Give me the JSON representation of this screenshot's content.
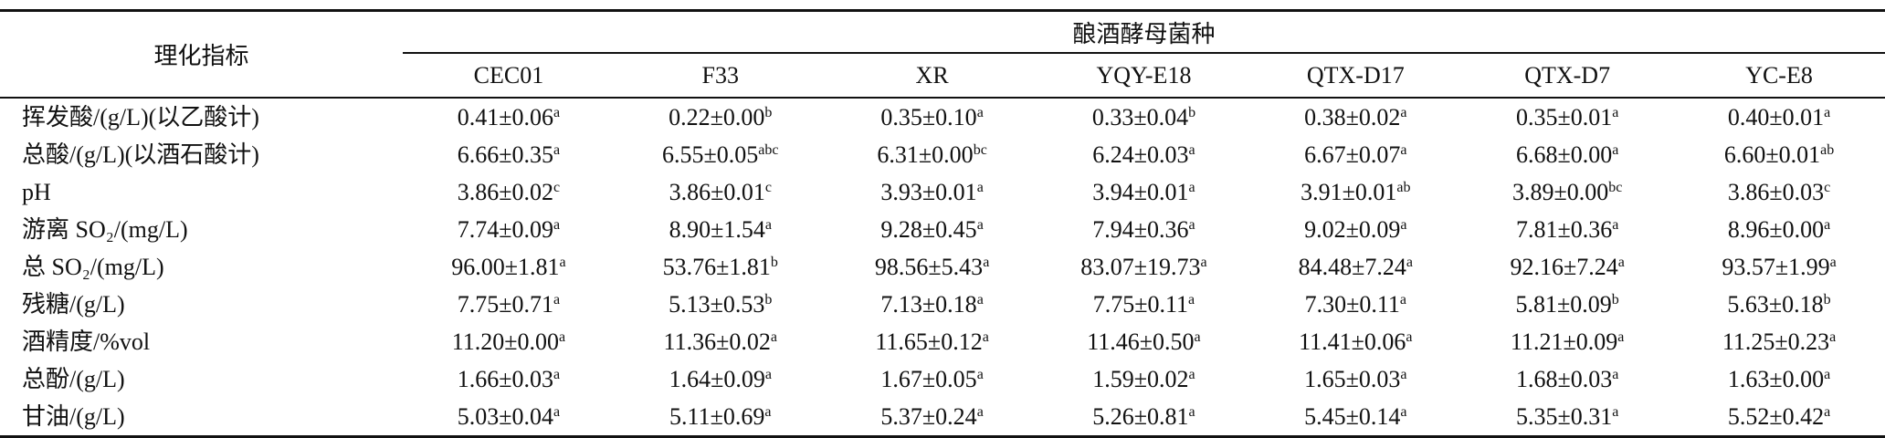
{
  "table": {
    "header": {
      "first": "理化指标",
      "group": "酿酒酵母菌种",
      "columns": [
        "CEC01",
        "F33",
        "XR",
        "YQY-E18",
        "QTX-D17",
        "QTX-D7",
        "YC-E8"
      ]
    },
    "rows": [
      {
        "label": "挥发酸/(g/L)(以乙酸计)",
        "cells": [
          {
            "value": "0.41±0.06",
            "sup": "a"
          },
          {
            "value": "0.22±0.00",
            "sup": "b"
          },
          {
            "value": "0.35±0.10",
            "sup": "a"
          },
          {
            "value": "0.33±0.04",
            "sup": "b"
          },
          {
            "value": "0.38±0.02",
            "sup": "a"
          },
          {
            "value": "0.35±0.01",
            "sup": "a"
          },
          {
            "value": "0.40±0.01",
            "sup": "a"
          }
        ]
      },
      {
        "label": "总酸/(g/L)(以酒石酸计)",
        "cells": [
          {
            "value": "6.66±0.35",
            "sup": "a"
          },
          {
            "value": "6.55±0.05",
            "sup": "abc"
          },
          {
            "value": "6.31±0.00",
            "sup": "bc"
          },
          {
            "value": "6.24±0.03",
            "sup": "a"
          },
          {
            "value": "6.67±0.07",
            "sup": "a"
          },
          {
            "value": "6.68±0.00",
            "sup": "a"
          },
          {
            "value": "6.60±0.01",
            "sup": "ab"
          }
        ]
      },
      {
        "label": "pH",
        "cells": [
          {
            "value": "3.86±0.02",
            "sup": "c"
          },
          {
            "value": "3.86±0.01",
            "sup": "c"
          },
          {
            "value": "3.93±0.01",
            "sup": "a"
          },
          {
            "value": "3.94±0.01",
            "sup": "a"
          },
          {
            "value": "3.91±0.01",
            "sup": "ab"
          },
          {
            "value": "3.89±0.00",
            "sup": "bc"
          },
          {
            "value": "3.86±0.03",
            "sup": "c"
          }
        ]
      },
      {
        "label": "游离 SO₂/(mg/L)",
        "cells": [
          {
            "value": "7.74±0.09",
            "sup": "a"
          },
          {
            "value": "8.90±1.54",
            "sup": "a"
          },
          {
            "value": "9.28±0.45",
            "sup": "a"
          },
          {
            "value": "7.94±0.36",
            "sup": "a"
          },
          {
            "value": "9.02±0.09",
            "sup": "a"
          },
          {
            "value": "7.81±0.36",
            "sup": "a"
          },
          {
            "value": "8.96±0.00",
            "sup": "a"
          }
        ]
      },
      {
        "label": "总 SO₂/(mg/L)",
        "cells": [
          {
            "value": "96.00±1.81",
            "sup": "a"
          },
          {
            "value": "53.76±1.81",
            "sup": "b"
          },
          {
            "value": "98.56±5.43",
            "sup": "a"
          },
          {
            "value": "83.07±19.73",
            "sup": "a"
          },
          {
            "value": "84.48±7.24",
            "sup": "a"
          },
          {
            "value": "92.16±7.24",
            "sup": "a"
          },
          {
            "value": "93.57±1.99",
            "sup": "a"
          }
        ]
      },
      {
        "label": "残糖/(g/L)",
        "cells": [
          {
            "value": "7.75±0.71",
            "sup": "a"
          },
          {
            "value": "5.13±0.53",
            "sup": "b"
          },
          {
            "value": "7.13±0.18",
            "sup": "a"
          },
          {
            "value": "7.75±0.11",
            "sup": "a"
          },
          {
            "value": "7.30±0.11",
            "sup": "a"
          },
          {
            "value": "5.81±0.09",
            "sup": "b"
          },
          {
            "value": "5.63±0.18",
            "sup": "b"
          }
        ]
      },
      {
        "label": "酒精度/%vol",
        "cells": [
          {
            "value": "11.20±0.00",
            "sup": "a"
          },
          {
            "value": "11.36±0.02",
            "sup": "a"
          },
          {
            "value": "11.65±0.12",
            "sup": "a"
          },
          {
            "value": "11.46±0.50",
            "sup": "a"
          },
          {
            "value": "11.41±0.06",
            "sup": "a"
          },
          {
            "value": "11.21±0.09",
            "sup": "a"
          },
          {
            "value": "11.25±0.23",
            "sup": "a"
          }
        ]
      },
      {
        "label": "总酚/(g/L)",
        "cells": [
          {
            "value": "1.66±0.03",
            "sup": "a"
          },
          {
            "value": "1.64±0.09",
            "sup": "a"
          },
          {
            "value": "1.67±0.05",
            "sup": "a"
          },
          {
            "value": "1.59±0.02",
            "sup": "a"
          },
          {
            "value": "1.65±0.03",
            "sup": "a"
          },
          {
            "value": "1.68±0.03",
            "sup": "a"
          },
          {
            "value": "1.63±0.00",
            "sup": "a"
          }
        ]
      },
      {
        "label": "甘油/(g/L)",
        "cells": [
          {
            "value": "5.03±0.04",
            "sup": "a"
          },
          {
            "value": "5.11±0.69",
            "sup": "a"
          },
          {
            "value": "5.37±0.24",
            "sup": "a"
          },
          {
            "value": "5.26±0.81",
            "sup": "a"
          },
          {
            "value": "5.45±0.14",
            "sup": "a"
          },
          {
            "value": "5.35±0.31",
            "sup": "a"
          },
          {
            "value": "5.52±0.42",
            "sup": "a"
          }
        ]
      }
    ]
  }
}
